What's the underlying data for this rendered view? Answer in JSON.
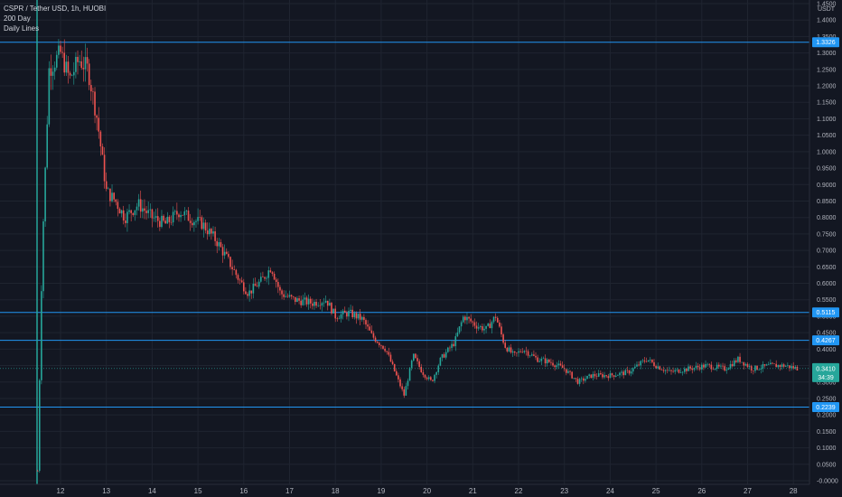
{
  "legend": {
    "symbol": "CSPR / Tether USD, 1h, HUOBI",
    "indicator_1": "200 Day",
    "indicator_2": "Daily Lines"
  },
  "colors": {
    "background": "#131722",
    "grid": "#1f2430",
    "up": "#26a69a",
    "down": "#ef5350",
    "hline": "#2196f3",
    "axis_text": "#b2b5be",
    "label_bg": "#2196f3",
    "price_label_bg": "#26a69a"
  },
  "chart_data": {
    "type": "candlestick",
    "y_axis": {
      "currency": "USDT",
      "ylim": [
        -0.0,
        1.45
      ],
      "ticks": [
        "1.4500",
        "1.4000",
        "1.3500",
        "1.3000",
        "1.2500",
        "1.2000",
        "1.1500",
        "1.1000",
        "1.0500",
        "1.0000",
        "0.9500",
        "0.9000",
        "0.8500",
        "0.8000",
        "0.7500",
        "0.7000",
        "0.6500",
        "0.6000",
        "0.5500",
        "0.5000",
        "0.4500",
        "0.4000",
        "0.3500",
        "0.3000",
        "0.2500",
        "0.2000",
        "0.1500",
        "0.1000",
        "0.0500",
        "-0.0000"
      ]
    },
    "x_axis": {
      "ticks": [
        "12",
        "13",
        "14",
        "15",
        "16",
        "17",
        "18",
        "19",
        "20",
        "21",
        "22",
        "23",
        "24",
        "25",
        "26",
        "27",
        "28"
      ]
    },
    "horizontal_lines": [
      {
        "value": 1.3326,
        "label": "1.3326"
      },
      {
        "value": 0.5115,
        "label": "0.5115"
      },
      {
        "value": 0.4267,
        "label": "0.4267"
      },
      {
        "value": 0.2239,
        "label": "0.2239"
      }
    ],
    "current_price": {
      "value": 0.341,
      "label": "0.3410",
      "countdown": "34:39"
    },
    "series": [
      {
        "day": 11.5,
        "close": 0.03
      },
      {
        "day": 11.6,
        "close": 0.7
      },
      {
        "day": 11.75,
        "close": 1.25
      },
      {
        "day": 12.0,
        "close": 1.3
      },
      {
        "day": 12.2,
        "close": 1.22
      },
      {
        "day": 12.4,
        "close": 1.28
      },
      {
        "day": 12.6,
        "close": 1.25
      },
      {
        "day": 12.8,
        "close": 1.1
      },
      {
        "day": 13.0,
        "close": 0.88
      },
      {
        "day": 13.2,
        "close": 0.85
      },
      {
        "day": 13.4,
        "close": 0.8
      },
      {
        "day": 13.7,
        "close": 0.84
      },
      {
        "day": 14.0,
        "close": 0.8
      },
      {
        "day": 14.3,
        "close": 0.78
      },
      {
        "day": 14.6,
        "close": 0.82
      },
      {
        "day": 14.8,
        "close": 0.8
      },
      {
        "day": 15.1,
        "close": 0.78
      },
      {
        "day": 15.4,
        "close": 0.73
      },
      {
        "day": 15.7,
        "close": 0.66
      },
      {
        "day": 15.9,
        "close": 0.61
      },
      {
        "day": 16.1,
        "close": 0.57
      },
      {
        "day": 16.4,
        "close": 0.61
      },
      {
        "day": 16.6,
        "close": 0.65
      },
      {
        "day": 16.8,
        "close": 0.57
      },
      {
        "day": 17.1,
        "close": 0.55
      },
      {
        "day": 17.5,
        "close": 0.54
      },
      {
        "day": 17.8,
        "close": 0.55
      },
      {
        "day": 18.0,
        "close": 0.5
      },
      {
        "day": 18.3,
        "close": 0.51
      },
      {
        "day": 18.6,
        "close": 0.49
      },
      {
        "day": 18.8,
        "close": 0.44
      },
      {
        "day": 19.1,
        "close": 0.4
      },
      {
        "day": 19.3,
        "close": 0.33
      },
      {
        "day": 19.5,
        "close": 0.26
      },
      {
        "day": 19.7,
        "close": 0.38
      },
      {
        "day": 19.9,
        "close": 0.33
      },
      {
        "day": 20.1,
        "close": 0.3
      },
      {
        "day": 20.3,
        "close": 0.37
      },
      {
        "day": 20.6,
        "close": 0.42
      },
      {
        "day": 20.8,
        "close": 0.5
      },
      {
        "day": 21.1,
        "close": 0.47
      },
      {
        "day": 21.3,
        "close": 0.46
      },
      {
        "day": 21.5,
        "close": 0.5
      },
      {
        "day": 21.7,
        "close": 0.41
      },
      {
        "day": 21.9,
        "close": 0.38
      },
      {
        "day": 22.1,
        "close": 0.4
      },
      {
        "day": 22.4,
        "close": 0.37
      },
      {
        "day": 22.7,
        "close": 0.36
      },
      {
        "day": 23.0,
        "close": 0.34
      },
      {
        "day": 23.3,
        "close": 0.3
      },
      {
        "day": 23.6,
        "close": 0.32
      },
      {
        "day": 24.0,
        "close": 0.32
      },
      {
        "day": 24.4,
        "close": 0.33
      },
      {
        "day": 24.8,
        "close": 0.37
      },
      {
        "day": 25.0,
        "close": 0.35
      },
      {
        "day": 25.3,
        "close": 0.33
      },
      {
        "day": 25.7,
        "close": 0.34
      },
      {
        "day": 26.1,
        "close": 0.35
      },
      {
        "day": 26.5,
        "close": 0.34
      },
      {
        "day": 26.8,
        "close": 0.37
      },
      {
        "day": 27.1,
        "close": 0.34
      },
      {
        "day": 27.5,
        "close": 0.35
      },
      {
        "day": 27.8,
        "close": 0.35
      },
      {
        "day": 28.1,
        "close": 0.341
      }
    ]
  }
}
